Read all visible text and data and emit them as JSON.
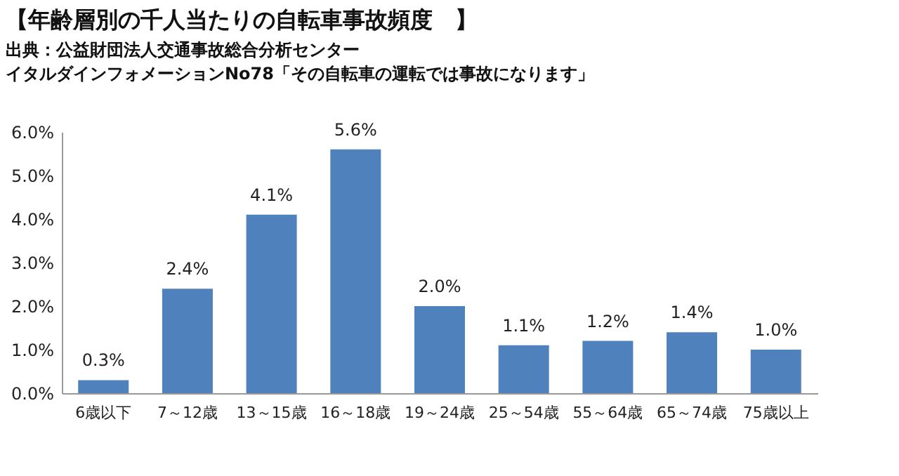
{
  "chart_data": {
    "type": "bar",
    "title": "【年齢層別の千人当たりの自転車事故頻度　】",
    "annotations": [
      "出典：公益財団法人交通事故総合分析センター",
      "イタルダインフォメーションNo78「その自転車の運転では事故になります」"
    ],
    "categories": [
      "6歳以下",
      "7～12歳",
      "13～15歳",
      "16～18歳",
      "19～24歳",
      "25～54歳",
      "55～64歳",
      "65～74歳",
      "75歳以上"
    ],
    "values": [
      0.3,
      2.4,
      4.1,
      5.6,
      2.0,
      1.1,
      1.2,
      1.4,
      1.0
    ],
    "value_labels": [
      "0.3%",
      "2.4%",
      "4.1%",
      "5.6%",
      "2.0%",
      "1.1%",
      "1.2%",
      "1.4%",
      "1.0%"
    ],
    "color": "#4f81bd",
    "ylim": [
      0,
      6
    ],
    "yticks": [
      {
        "value": 0,
        "label": "0.0%"
      },
      {
        "value": 1,
        "label": "1.0%"
      },
      {
        "value": 2,
        "label": "2.0%"
      },
      {
        "value": 3,
        "label": "3.0%"
      },
      {
        "value": 4,
        "label": "4.0%"
      },
      {
        "value": 5,
        "label": "5.0%"
      },
      {
        "value": 6,
        "label": "6.0%"
      }
    ],
    "grid": false
  }
}
